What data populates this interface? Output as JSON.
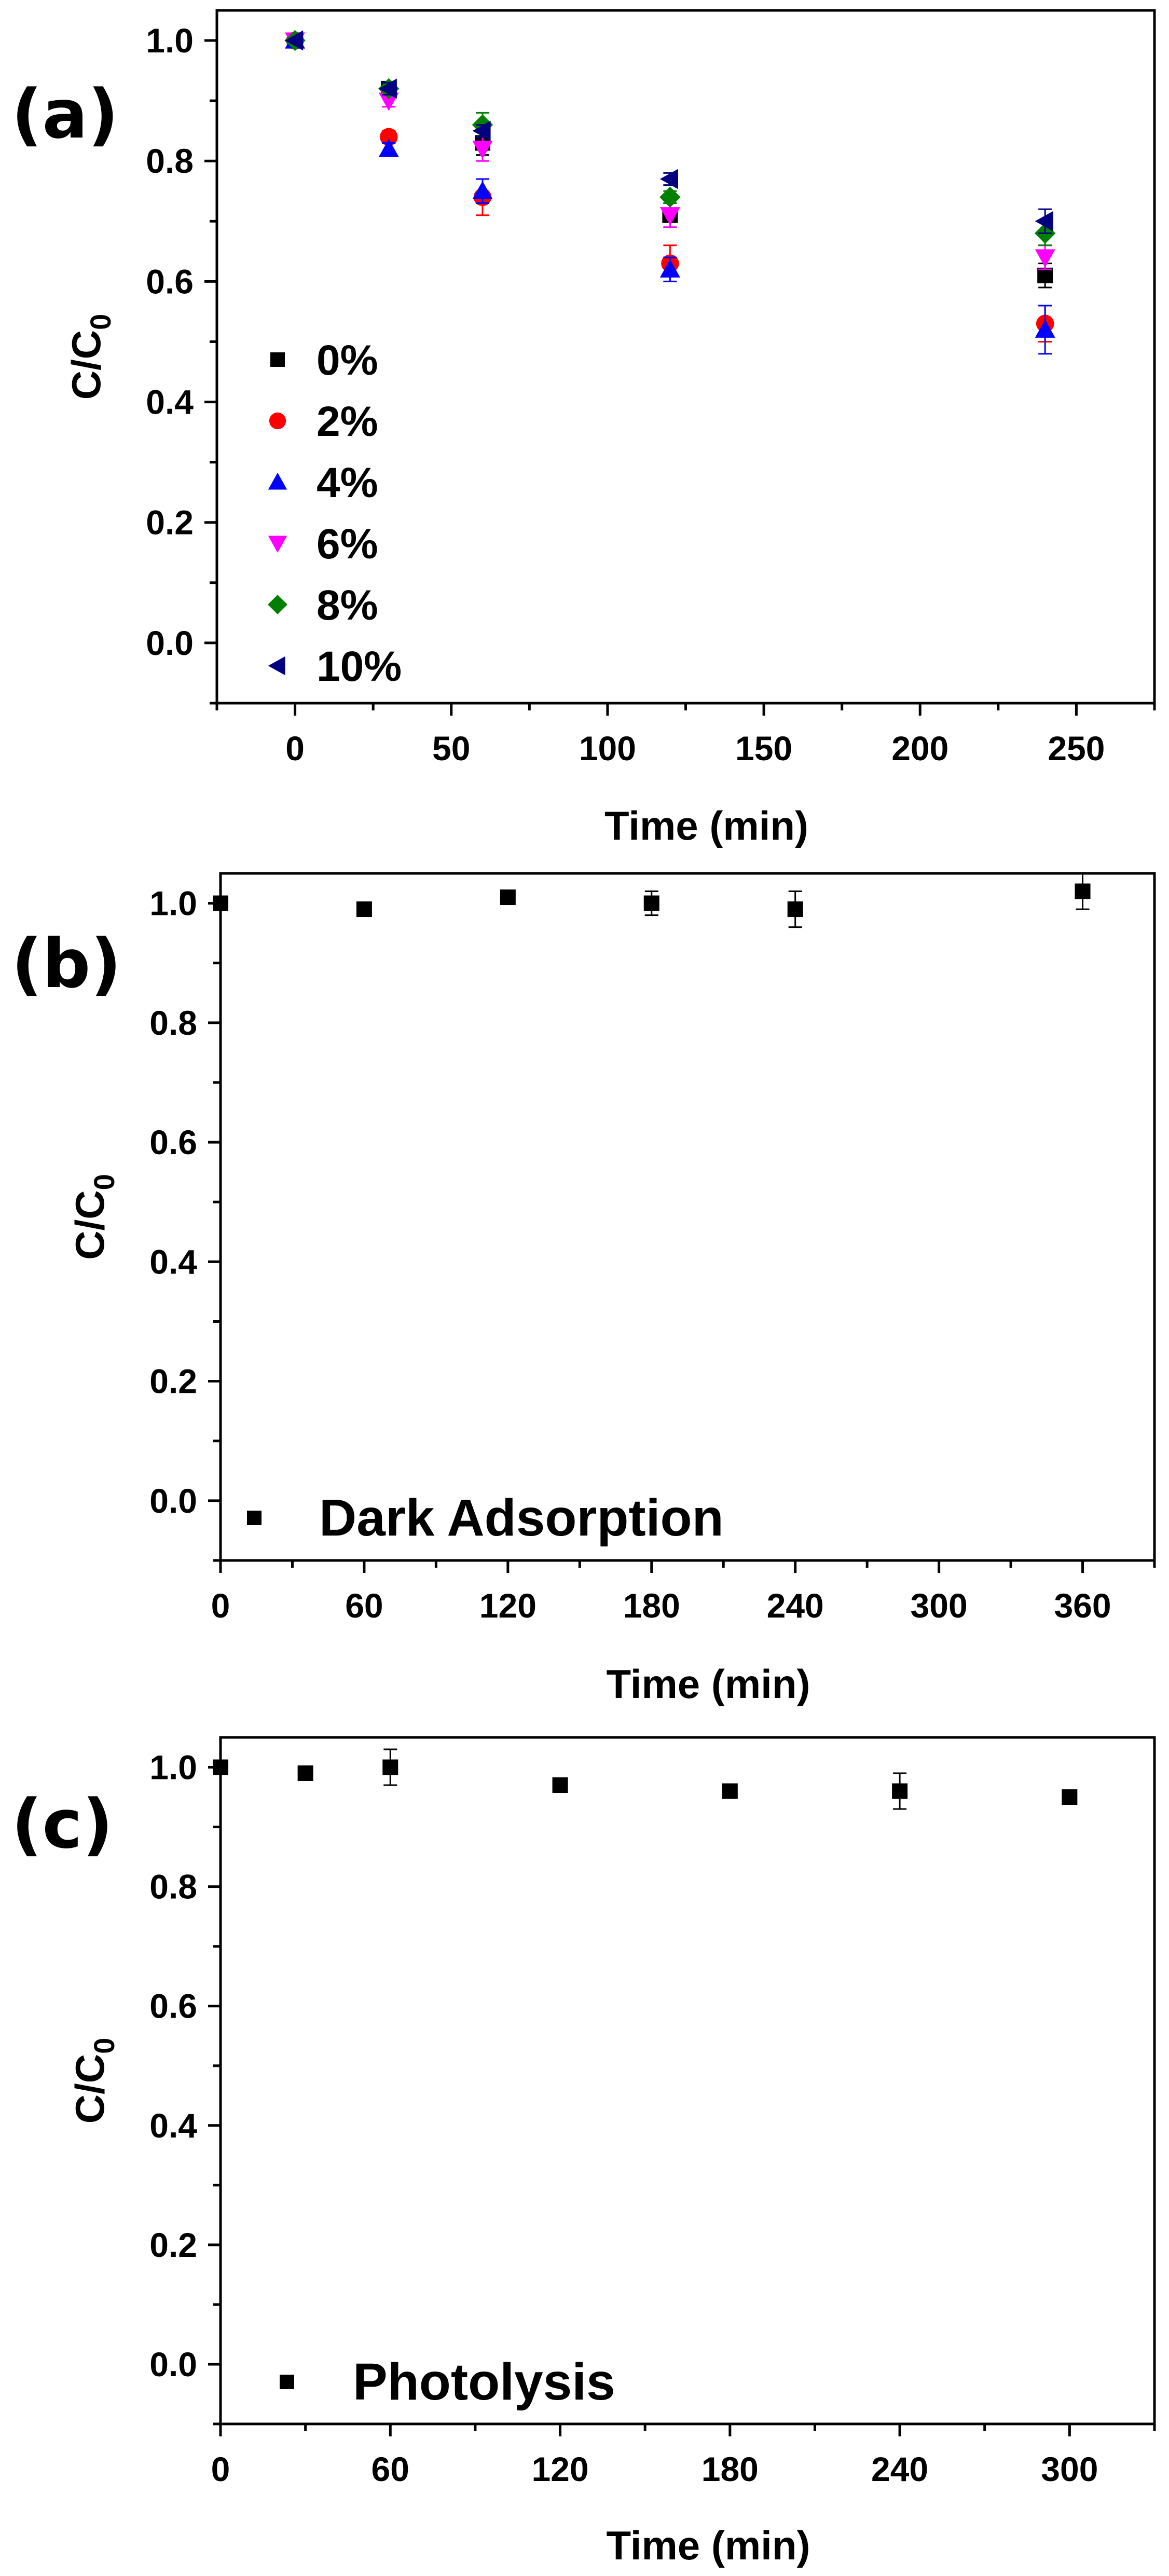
{
  "chart_data": [
    {
      "type": "scatter",
      "panel_label": "(a)",
      "xlabel": "Time (min)",
      "ylabel": "C/C0",
      "xlim": [
        -25,
        275
      ],
      "ylim": [
        -0.1,
        1.05
      ],
      "xticks": [
        0,
        50,
        100,
        150,
        200,
        250
      ],
      "xtick_labels": [
        "0",
        "50",
        "100",
        "150",
        "200",
        "250"
      ],
      "yticks": [
        0.0,
        0.2,
        0.4,
        0.6,
        0.8,
        1.0
      ],
      "ytick_labels": [
        "0.0",
        "0.2",
        "0.4",
        "0.6",
        "0.8",
        "1.0"
      ],
      "legend_position": "bottom-left",
      "series": [
        {
          "name": "0%",
          "marker": "square",
          "color": "#000000",
          "x": [
            0,
            30,
            60,
            120,
            240
          ],
          "y": [
            1.0,
            0.92,
            0.83,
            0.71,
            0.61
          ],
          "err": [
            0.0,
            0.01,
            0.02,
            0.02,
            0.02
          ]
        },
        {
          "name": "2%",
          "marker": "circle",
          "color": "#ff0000",
          "x": [
            0,
            30,
            60,
            120,
            240
          ],
          "y": [
            1.0,
            0.84,
            0.74,
            0.63,
            0.53
          ],
          "err": [
            0.0,
            0.01,
            0.03,
            0.03,
            0.03
          ]
        },
        {
          "name": "4%",
          "marker": "triangle-up",
          "color": "#0000ff",
          "x": [
            0,
            30,
            60,
            120,
            240
          ],
          "y": [
            1.0,
            0.82,
            0.75,
            0.62,
            0.52
          ],
          "err": [
            0.0,
            0.01,
            0.02,
            0.02,
            0.04
          ]
        },
        {
          "name": "6%",
          "marker": "triangle-down",
          "color": "#ff00ff",
          "x": [
            0,
            30,
            60,
            120,
            240
          ],
          "y": [
            1.0,
            0.9,
            0.82,
            0.71,
            0.64
          ],
          "err": [
            0.0,
            0.01,
            0.02,
            0.02,
            0.02
          ]
        },
        {
          "name": "8%",
          "marker": "diamond",
          "color": "#008000",
          "x": [
            0,
            30,
            60,
            120,
            240
          ],
          "y": [
            1.0,
            0.92,
            0.86,
            0.74,
            0.68
          ],
          "err": [
            0.0,
            0.01,
            0.02,
            0.01,
            0.02
          ]
        },
        {
          "name": "10%",
          "marker": "triangle-left",
          "color": "#000080",
          "x": [
            0,
            30,
            60,
            120,
            240
          ],
          "y": [
            1.0,
            0.92,
            0.85,
            0.77,
            0.7
          ],
          "err": [
            0.0,
            0.01,
            0.01,
            0.01,
            0.02
          ]
        }
      ]
    },
    {
      "type": "scatter",
      "panel_label": "(b)",
      "xlabel": "Time (min)",
      "ylabel": "C/C0",
      "xlim": [
        0,
        390
      ],
      "ylim": [
        -0.1,
        1.05
      ],
      "xticks": [
        0,
        60,
        120,
        180,
        240,
        300,
        360
      ],
      "xtick_labels": [
        "0",
        "60",
        "120",
        "180",
        "240",
        "300",
        "360"
      ],
      "yticks": [
        0.0,
        0.2,
        0.4,
        0.6,
        0.8,
        1.0
      ],
      "ytick_labels": [
        "0.0",
        "0.2",
        "0.4",
        "0.6",
        "0.8",
        "1.0"
      ],
      "legend_position": "bottom-left",
      "series": [
        {
          "name": "Dark Adsorption",
          "marker": "square",
          "color": "#000000",
          "x": [
            0,
            60,
            120,
            180,
            240,
            360
          ],
          "y": [
            1.0,
            0.99,
            1.01,
            1.0,
            0.99,
            1.02
          ],
          "err": [
            0.0,
            0.0,
            0.01,
            0.02,
            0.03,
            0.03
          ]
        }
      ]
    },
    {
      "type": "scatter",
      "panel_label": "(c)",
      "xlabel": "Time (min)",
      "ylabel": "C/C0",
      "xlim": [
        0,
        330
      ],
      "ylim": [
        -0.1,
        1.05
      ],
      "xticks": [
        0,
        60,
        120,
        180,
        240,
        300
      ],
      "xtick_labels": [
        "0",
        "60",
        "120",
        "180",
        "240",
        "300"
      ],
      "yticks": [
        0.0,
        0.2,
        0.4,
        0.6,
        0.8,
        1.0
      ],
      "ytick_labels": [
        "0.0",
        "0.2",
        "0.4",
        "0.6",
        "0.8",
        "1.0"
      ],
      "legend_position": "bottom-left",
      "series": [
        {
          "name": "Photolysis",
          "marker": "square",
          "color": "#000000",
          "x": [
            0,
            30,
            60,
            120,
            180,
            240,
            300
          ],
          "y": [
            1.0,
            0.99,
            1.0,
            0.97,
            0.96,
            0.96,
            0.95
          ],
          "err": [
            0.0,
            0.01,
            0.03,
            0.0,
            0.0,
            0.03,
            0.01
          ]
        }
      ]
    }
  ]
}
